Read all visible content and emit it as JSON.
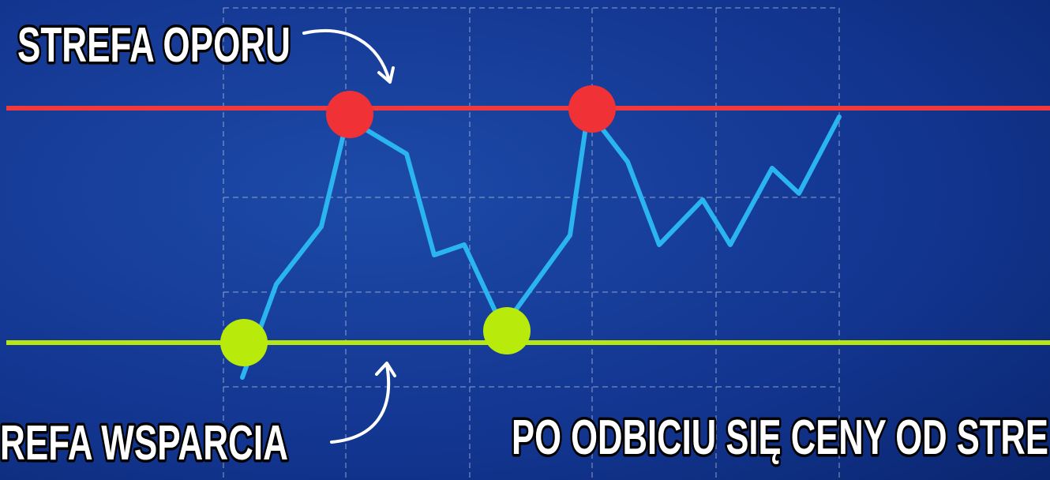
{
  "labels": {
    "resistance": "STREFA OPORU",
    "support": "REFA WSPARCIA",
    "caption": "PO ODBICIU SIĘ CENY OD STRE"
  }
}
